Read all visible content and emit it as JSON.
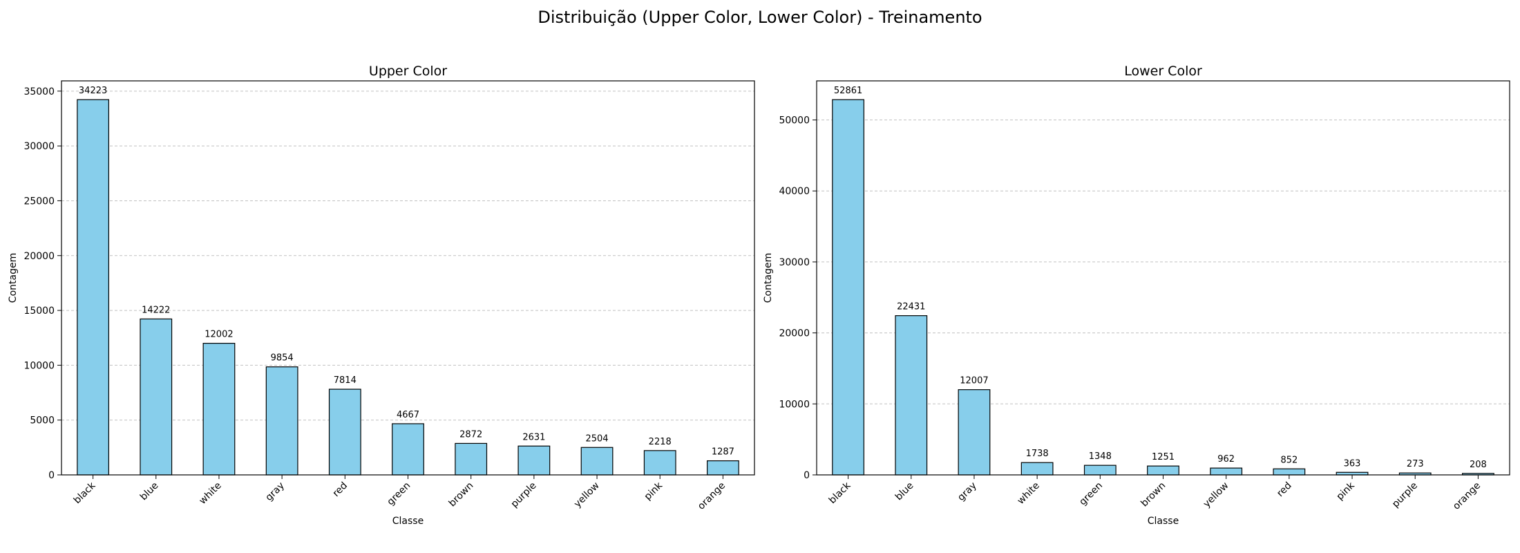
{
  "suptitle": "Distribuição (Upper Color, Lower Color) - Treinamento",
  "colors": {
    "bar_fill": "#87CEEB",
    "bar_edge": "#000000",
    "grid": "#c0c0c0"
  },
  "chart_data": [
    {
      "type": "bar",
      "title": "Upper Color",
      "xlabel": "Classe",
      "ylabel": "Contagem",
      "categories": [
        "black",
        "blue",
        "white",
        "gray",
        "red",
        "green",
        "brown",
        "purple",
        "yellow",
        "pink",
        "orange"
      ],
      "values": [
        34223,
        14222,
        12002,
        9854,
        7814,
        4667,
        2872,
        2631,
        2504,
        2218,
        1287
      ],
      "ylim": [
        0,
        35934
      ],
      "yticks": [
        0,
        5000,
        10000,
        15000,
        20000,
        25000,
        30000,
        35000
      ],
      "grid": "y-dashed"
    },
    {
      "type": "bar",
      "title": "Lower Color",
      "xlabel": "Classe",
      "ylabel": "Contagem",
      "categories": [
        "black",
        "blue",
        "gray",
        "white",
        "green",
        "brown",
        "yellow",
        "red",
        "pink",
        "purple",
        "orange"
      ],
      "values": [
        52861,
        22431,
        12007,
        1738,
        1348,
        1251,
        962,
        852,
        363,
        273,
        208
      ],
      "ylim": [
        0,
        55504
      ],
      "yticks": [
        0,
        10000,
        20000,
        30000,
        40000,
        50000
      ],
      "grid": "y-dashed"
    }
  ]
}
